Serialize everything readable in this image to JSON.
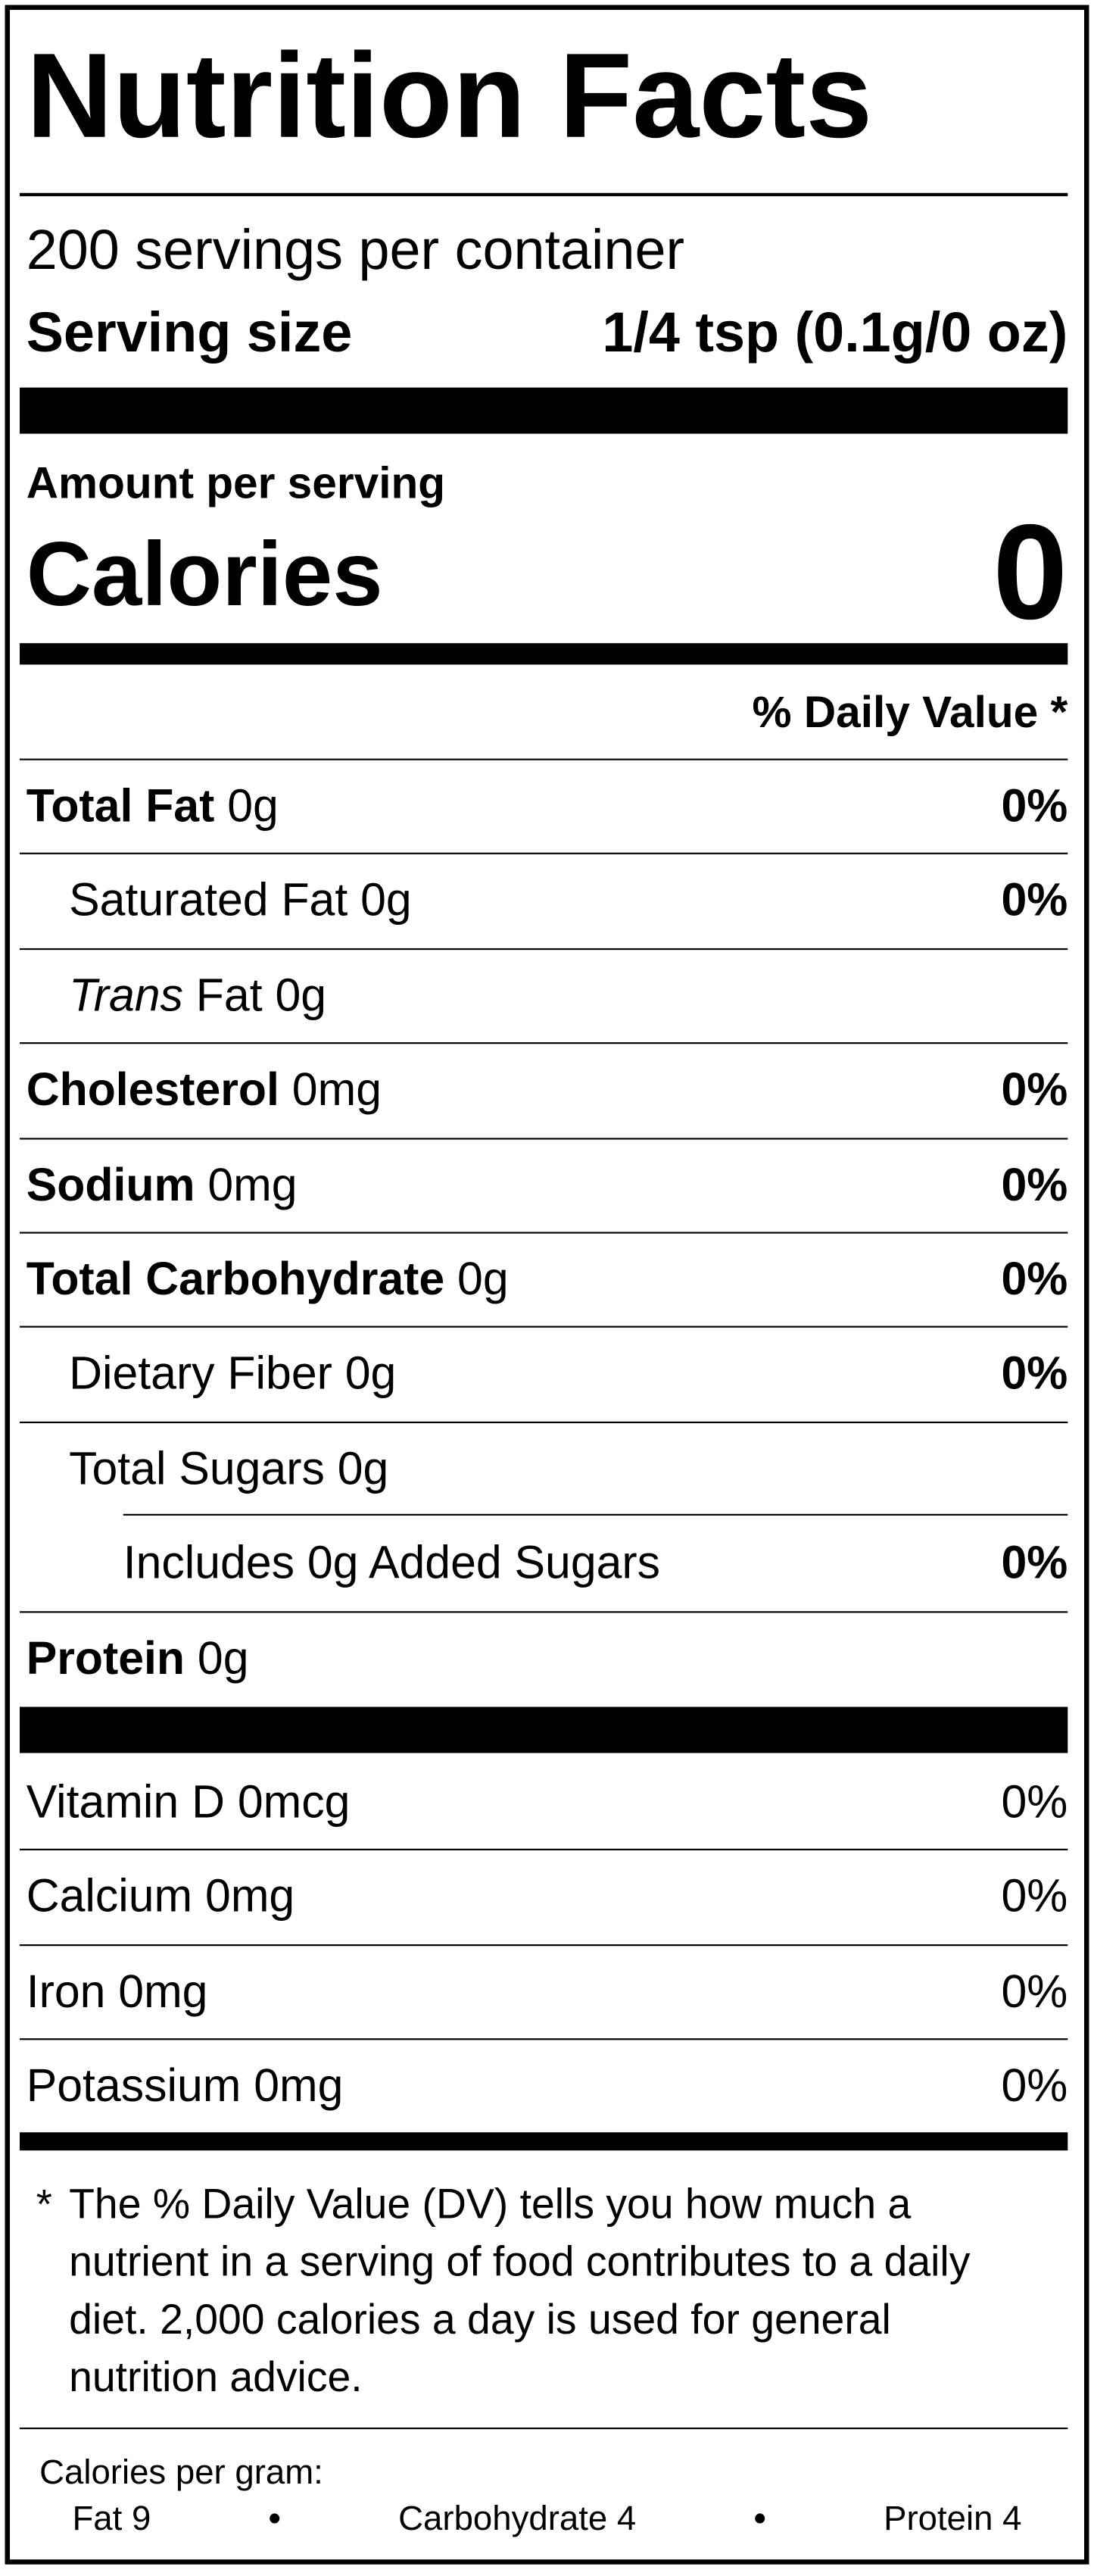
{
  "title": "Nutrition Facts",
  "servings": "200 servings per container",
  "serving_size": {
    "label": "Serving size",
    "value": "1/4 tsp (0.1g/0 oz)"
  },
  "amount_per_serving": "Amount per serving",
  "calories": {
    "label": "Calories",
    "value": 0
  },
  "daily_value_header": "% Daily Value *",
  "nutrients": [
    {
      "name": "Total Fat",
      "amount": "0g",
      "dv": "0%",
      "level": 0
    },
    {
      "name": "Saturated Fat",
      "amount": "0g",
      "dv": "0%",
      "level": 1
    },
    {
      "name": "Trans",
      "name_rest": "Fat",
      "amount": "0g",
      "level": 1
    },
    {
      "name": "Cholesterol",
      "amount": "0mg",
      "dv": "0%",
      "level": 0
    },
    {
      "name": "Sodium",
      "amount": "0mg",
      "dv": "0%",
      "level": 0
    },
    {
      "name": "Total Carbohydrate",
      "amount": "0g",
      "dv": "0%",
      "level": 0
    },
    {
      "name": "Dietary Fiber",
      "amount": "0g",
      "dv": "0%",
      "level": 1
    },
    {
      "name": "Total Sugars",
      "amount": "0g",
      "level": 1
    },
    {
      "name": "Includes 0g Added Sugars",
      "dv": "0%",
      "level": 2
    },
    {
      "name": "Protein",
      "amount": "0g",
      "level": 0
    }
  ],
  "vitamins": [
    {
      "name": "Vitamin D",
      "amount": "0mcg",
      "dv": "0%"
    },
    {
      "name": "Calcium",
      "amount": "0mg",
      "dv": "0%"
    },
    {
      "name": "Iron",
      "amount": "0mg",
      "dv": "0%"
    },
    {
      "name": "Potassium",
      "amount": "0mg",
      "dv": "0%"
    }
  ],
  "footnote": {
    "marker": "*",
    "text": "The % Daily Value (DV) tells you how much a nutrient in a serving of food contributes to a daily diet. 2,000 calories a day is used for general nutrition advice."
  },
  "calories_per_gram": {
    "label": "Calories per gram:",
    "items": [
      "Fat 9",
      "Carbohydrate 4",
      "Protein 4"
    ]
  }
}
